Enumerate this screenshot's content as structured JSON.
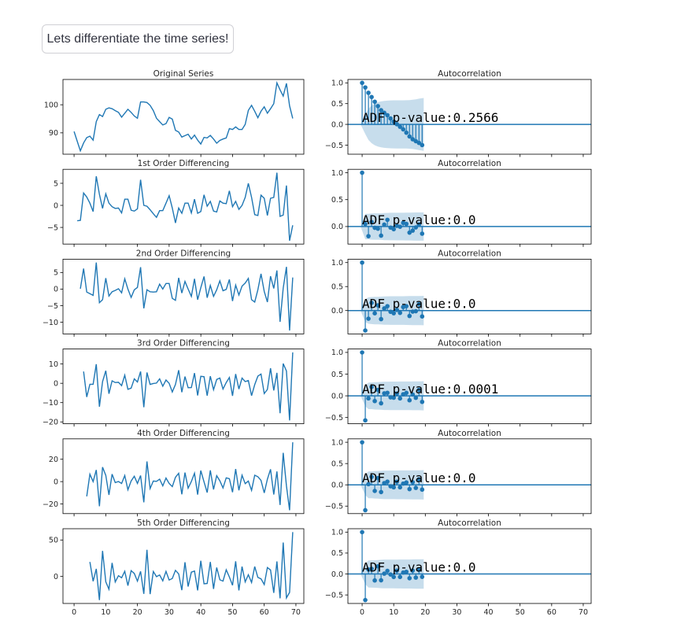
{
  "button": {
    "label": "Lets differentiate the time series!"
  },
  "colors": {
    "series": "#1f77b4",
    "band_opacity": 0.25,
    "axes": "#000000",
    "text": "#262626"
  },
  "original_series": [
    90.5,
    87,
    83.6,
    86.4,
    88.3,
    88.8,
    87.4,
    94,
    96.5,
    95.8,
    98.4,
    98.9,
    98.6,
    97.9,
    97.3,
    95.6,
    97,
    98.4,
    97.3,
    96,
    95.2,
    101,
    101,
    100.8,
    99.8,
    97.9,
    95.2,
    94,
    92.8,
    93.3,
    95.5,
    94.9,
    90.9,
    90.3,
    88.5,
    89,
    89.5,
    87.8,
    89.2,
    87.4,
    86,
    88.4,
    88.2,
    89.1,
    87.8,
    86.3,
    87.3,
    87.8,
    88.2,
    91.5,
    91.2,
    92.1,
    91.2,
    91.2,
    93,
    98,
    99.8,
    97.7,
    95.4,
    97.7,
    99.3,
    97,
    98.6,
    100.4,
    107.8,
    105.3,
    103.1,
    107.6,
    99.6,
    95.1
  ],
  "chart_data": [
    {
      "type": "line",
      "title": "Original Series",
      "differencing_order": 0,
      "xlim": [
        -3.5,
        72.5
      ],
      "xticks": [
        0,
        10,
        20,
        30,
        40,
        50,
        60,
        70
      ],
      "xtick_labels": [
        "0",
        "10",
        "20",
        "30",
        "40",
        "50",
        "60",
        "70"
      ],
      "yticks": [
        90,
        100
      ],
      "ytick_labels": [
        "90",
        "100"
      ],
      "show_xtick_labels": false,
      "acf": {
        "title": "Autocorrelation",
        "nlags": 19,
        "adf_label": "ADF p-value:0.2566",
        "xlim": [
          -4.5,
          72.5
        ],
        "yticks": [
          -0.5,
          0,
          0.5,
          1.0
        ],
        "ytick_labels": [
          "−0.5",
          "0.0",
          "0.5",
          "1.0"
        ]
      }
    },
    {
      "type": "line",
      "title": "1st Order Differencing",
      "differencing_order": 1,
      "xlim": [
        -3.5,
        72.5
      ],
      "xticks": [
        0,
        10,
        20,
        30,
        40,
        50,
        60,
        70
      ],
      "xtick_labels": [
        "0",
        "10",
        "20",
        "30",
        "40",
        "50",
        "60",
        "70"
      ],
      "yticks": [
        -5,
        0,
        5
      ],
      "ytick_labels": [
        "−5",
        "0",
        "5"
      ],
      "show_xtick_labels": false,
      "acf": {
        "title": "Autocorrelation",
        "nlags": 19,
        "adf_label": "ADF p-value:0.0",
        "xlim": [
          -4.5,
          72.5
        ],
        "yticks": [
          0,
          0.5,
          1.0
        ],
        "ytick_labels": [
          "0.0",
          "0.5",
          "1.0"
        ]
      }
    },
    {
      "type": "line",
      "title": "2nd Order Differencing",
      "differencing_order": 2,
      "xlim": [
        -3.5,
        72.5
      ],
      "xticks": [
        0,
        10,
        20,
        30,
        40,
        50,
        60,
        70
      ],
      "xtick_labels": [
        "0",
        "10",
        "20",
        "30",
        "40",
        "50",
        "60",
        "70"
      ],
      "yticks": [
        -10,
        -5,
        0,
        5
      ],
      "ytick_labels": [
        "−10",
        "−5",
        "0",
        "5"
      ],
      "show_xtick_labels": false,
      "acf": {
        "title": "Autocorrelation",
        "nlags": 19,
        "adf_label": "ADF p-value:0.0",
        "xlim": [
          -4.5,
          72.5
        ],
        "yticks": [
          0,
          0.5,
          1.0
        ],
        "ytick_labels": [
          "0.0",
          "0.5",
          "1.0"
        ]
      }
    },
    {
      "type": "line",
      "title": "3rd Order Differencing",
      "differencing_order": 3,
      "xlim": [
        -3.5,
        72.5
      ],
      "xticks": [
        0,
        10,
        20,
        30,
        40,
        50,
        60,
        70
      ],
      "xtick_labels": [
        "0",
        "10",
        "20",
        "30",
        "40",
        "50",
        "60",
        "70"
      ],
      "yticks": [
        -20,
        -10,
        0,
        10
      ],
      "ytick_labels": [
        "−20",
        "−10",
        "0",
        "10"
      ],
      "show_xtick_labels": false,
      "acf": {
        "title": "Autocorrelation",
        "nlags": 19,
        "adf_label": "ADF p-value:0.0001",
        "xlim": [
          -4.5,
          72.5
        ],
        "yticks": [
          -0.5,
          0,
          0.5,
          1.0
        ],
        "ytick_labels": [
          "−0.5",
          "0.0",
          "0.5",
          "1.0"
        ]
      }
    },
    {
      "type": "line",
      "title": "4th Order Differencing",
      "differencing_order": 4,
      "xlim": [
        -3.5,
        72.5
      ],
      "xticks": [
        0,
        10,
        20,
        30,
        40,
        50,
        60,
        70
      ],
      "xtick_labels": [
        "0",
        "10",
        "20",
        "30",
        "40",
        "50",
        "60",
        "70"
      ],
      "yticks": [
        -20,
        0,
        20
      ],
      "ytick_labels": [
        "−20",
        "0",
        "20"
      ],
      "show_xtick_labels": false,
      "acf": {
        "title": "Autocorrelation",
        "nlags": 19,
        "adf_label": "ADF p-value:0.0",
        "xlim": [
          -4.5,
          72.5
        ],
        "yticks": [
          -0.5,
          0,
          0.5,
          1.0
        ],
        "ytick_labels": [
          "−0.5",
          "0.0",
          "0.5",
          "1.0"
        ]
      }
    },
    {
      "type": "line",
      "title": "5th Order Differencing",
      "differencing_order": 5,
      "xlim": [
        -3.5,
        72.5
      ],
      "xticks": [
        0,
        10,
        20,
        30,
        40,
        50,
        60,
        70
      ],
      "xtick_labels": [
        "0",
        "10",
        "20",
        "30",
        "40",
        "50",
        "60",
        "70"
      ],
      "yticks": [
        -50,
        0,
        50
      ],
      "ytick_labels": [
        "−50",
        "0",
        "50"
      ],
      "show_xtick_labels": true,
      "acf": {
        "title": "Autocorrelation",
        "nlags": 19,
        "adf_label": "ADF p-value:0.0",
        "xlim": [
          -4.5,
          72.5
        ],
        "yticks": [
          -0.5,
          0,
          0.5,
          1.0
        ],
        "ytick_labels": [
          "−0.5",
          "0.0",
          "0.5",
          "1.0"
        ]
      }
    }
  ]
}
